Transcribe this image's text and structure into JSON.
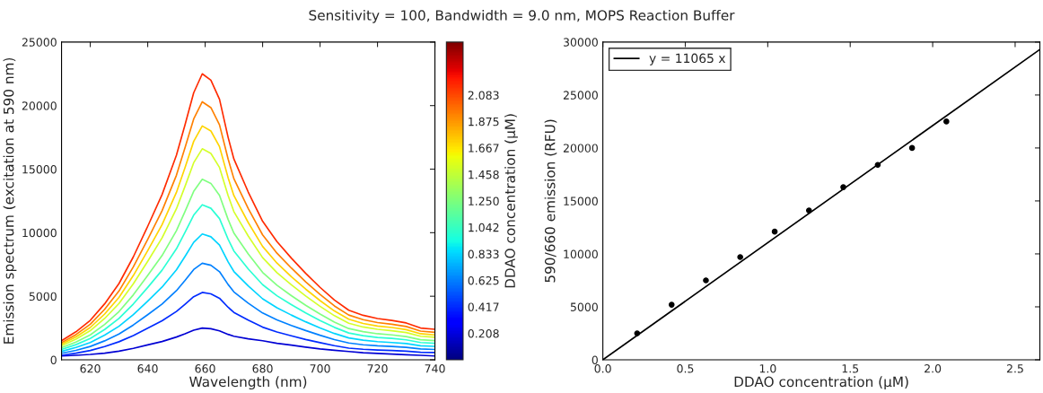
{
  "chart_data": [
    {
      "type": "line",
      "title": "Sensitivity = 100, Bandwidth = 9.0 nm, MOPS Reaction Buffer",
      "xlabel": "Wavelength (nm)",
      "ylabel": "Emission spectrum (excitation at 590 nm)",
      "clabel": "DDAO concentration (μM)",
      "x": [
        610,
        615,
        620,
        625,
        630,
        635,
        640,
        645,
        650,
        653,
        656,
        659,
        662,
        665,
        668,
        670,
        675,
        680,
        685,
        690,
        695,
        700,
        705,
        710,
        715,
        720,
        725,
        730,
        735,
        740
      ],
      "series": [
        {
          "color": "#0000d4",
          "values": [
            300,
            350,
            420,
            520,
            680,
            900,
            1170,
            1440,
            1790,
            2050,
            2330,
            2500,
            2440,
            2280,
            2000,
            1850,
            1650,
            1500,
            1300,
            1150,
            1000,
            850,
            750,
            650,
            550,
            500,
            450,
            400,
            350,
            300
          ]
        },
        {
          "color": "#002bff",
          "values": [
            350,
            520,
            730,
            1040,
            1420,
            1910,
            2480,
            3070,
            3800,
            4370,
            4960,
            5300,
            5190,
            4840,
            4130,
            3730,
            3120,
            2570,
            2190,
            1890,
            1600,
            1350,
            1110,
            920,
            830,
            770,
            730,
            680,
            590,
            570
          ]
        },
        {
          "color": "#0080ff",
          "values": [
            510,
            740,
            1050,
            1490,
            2030,
            2740,
            3550,
            4390,
            5440,
            6250,
            7100,
            7600,
            7440,
            6930,
            5920,
            5340,
            4460,
            3680,
            3140,
            2700,
            2300,
            1930,
            1590,
            1320,
            1180,
            1100,
            1050,
            980,
            850,
            810
          ]
        },
        {
          "color": "#00d4ff",
          "values": [
            660,
            970,
            1360,
            1940,
            2640,
            3560,
            4620,
            5720,
            7080,
            8140,
            9240,
            9900,
            9680,
            9020,
            7700,
            6950,
            5810,
            4800,
            4090,
            3520,
            2990,
            2510,
            2070,
            1720,
            1540,
            1430,
            1360,
            1280,
            1100,
            1060
          ]
        },
        {
          "color": "#2bffd4",
          "values": [
            810,
            1190,
            1680,
            2380,
            3250,
            4390,
            5690,
            7050,
            8730,
            10030,
            11380,
            12200,
            11920,
            11110,
            9490,
            8560,
            7150,
            5910,
            5040,
            4340,
            3690,
            3090,
            2550,
            2110,
            1900,
            1760,
            1680,
            1570,
            1360,
            1300
          ]
        },
        {
          "color": "#80ff80",
          "values": [
            950,
            1390,
            1960,
            2780,
            3790,
            5110,
            6630,
            8200,
            10160,
            11670,
            13250,
            14200,
            13880,
            12940,
            11040,
            9970,
            8330,
            6880,
            5870,
            5050,
            4290,
            3600,
            2970,
            2460,
            2210,
            2050,
            1960,
            1830,
            1580,
            1510
          ]
        },
        {
          "color": "#d4ff2b",
          "values": [
            1110,
            1620,
            2290,
            3250,
            4430,
            5980,
            7750,
            9590,
            11880,
            13650,
            15500,
            16600,
            16240,
            15130,
            12920,
            11660,
            9740,
            8040,
            6860,
            5900,
            5020,
            4210,
            3470,
            2880,
            2580,
            2400,
            2290,
            2140,
            1850,
            1770
          ]
        },
        {
          "color": "#ffd400",
          "values": [
            1230,
            1800,
            2540,
            3600,
            4910,
            6630,
            8590,
            10630,
            13170,
            15130,
            17180,
            18400,
            18000,
            16770,
            14320,
            12920,
            10800,
            8920,
            7610,
            6540,
            5560,
            4660,
            3840,
            3190,
            2860,
            2660,
            2540,
            2370,
            2050,
            1960
          ]
        },
        {
          "color": "#ff8000",
          "values": [
            1350,
            1980,
            2800,
            3970,
            5410,
            7310,
            9470,
            11730,
            14520,
            16690,
            18940,
            20300,
            19840,
            18490,
            15790,
            14250,
            11910,
            9830,
            8390,
            7220,
            6130,
            5140,
            4240,
            3520,
            3160,
            2930,
            2800,
            2620,
            2260,
            2160
          ]
        },
        {
          "color": "#ff2b00",
          "values": [
            1500,
            2200,
            3100,
            4400,
            6000,
            8100,
            10500,
            13000,
            16100,
            18500,
            21000,
            22500,
            22000,
            20500,
            17500,
            15800,
            13200,
            10900,
            9300,
            8000,
            6800,
            5700,
            4700,
            3900,
            3500,
            3250,
            3100,
            2900,
            2500,
            2400
          ]
        }
      ],
      "xlim": [
        610,
        740
      ],
      "xticks": [
        620,
        640,
        660,
        680,
        700,
        720,
        740
      ],
      "ylim": [
        0,
        25000
      ],
      "yticks": [
        0,
        5000,
        10000,
        15000,
        20000,
        25000
      ],
      "clim": [
        0,
        2.5
      ],
      "cticks": [
        {
          "value": 0.208,
          "label": "0.208"
        },
        {
          "value": 0.417,
          "label": "0.417"
        },
        {
          "value": 0.625,
          "label": "0.625"
        },
        {
          "value": 0.833,
          "label": "0.833"
        },
        {
          "value": 1.042,
          "label": "1.042"
        },
        {
          "value": 1.25,
          "label": "1.250"
        },
        {
          "value": 1.458,
          "label": "1.458"
        },
        {
          "value": 1.667,
          "label": "1.667"
        },
        {
          "value": 1.875,
          "label": "1.875"
        },
        {
          "value": 2.083,
          "label": "2.083"
        }
      ],
      "legend": false,
      "grid": false
    },
    {
      "type": "scatter",
      "xlabel": "DDAO concentration (μM)",
      "ylabel": "590/660 emission (RFU)",
      "series": [
        {
          "type": "scatter",
          "marker": "circle",
          "color": "#000000",
          "x": [
            0.208,
            0.417,
            0.625,
            0.833,
            1.042,
            1.25,
            1.458,
            1.667,
            1.875,
            2.083
          ],
          "values": [
            2500,
            5200,
            7500,
            9700,
            12100,
            14100,
            16300,
            18400,
            20000,
            22500
          ]
        },
        {
          "type": "line",
          "name": "y = 11065 x",
          "color": "#000000",
          "x": [
            0,
            2.65
          ],
          "values": [
            0,
            29300
          ]
        }
      ],
      "xlim": [
        0,
        2.65
      ],
      "xticks": [
        {
          "value": 0,
          "label": "0.0"
        },
        {
          "value": 0.5,
          "label": "0.5"
        },
        {
          "value": 1,
          "label": "1.0"
        },
        {
          "value": 1.5,
          "label": "1.5"
        },
        {
          "value": 2,
          "label": "2.0"
        },
        {
          "value": 2.5,
          "label": "2.5"
        }
      ],
      "ylim": [
        0,
        30000
      ],
      "yticks": [
        0,
        5000,
        10000,
        15000,
        20000,
        25000,
        30000
      ],
      "legend": "top left",
      "grid": false
    }
  ]
}
